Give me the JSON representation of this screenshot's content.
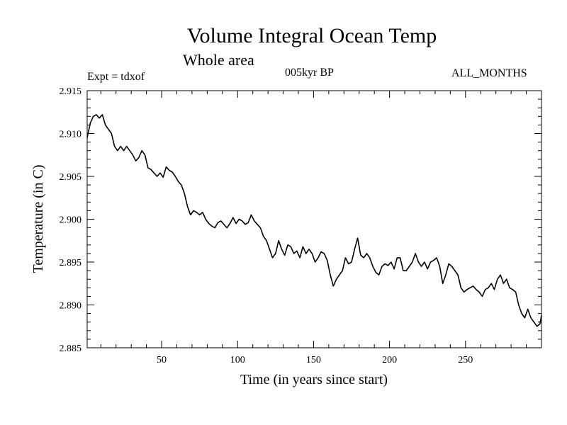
{
  "header": {
    "title": "Volume Integral Ocean Temp",
    "subtitle": "Whole area",
    "experiment": "Expt = tdxof",
    "period": "005kyr BP",
    "months": "ALL_MONTHS"
  },
  "chart_data": {
    "type": "line",
    "xlabel": "Time (in years since start)",
    "ylabel": "Temperature (in C)",
    "xlim": [
      1,
      300
    ],
    "ylim": [
      2.885,
      2.915
    ],
    "xticks": [
      50,
      100,
      150,
      200,
      250
    ],
    "yticks": [
      "2.885",
      "2.890",
      "2.895",
      "2.900",
      "2.905",
      "2.910",
      "2.915"
    ],
    "grid": false,
    "line_color": "#000000",
    "series": [
      {
        "x": [
          1,
          3,
          5,
          7,
          9,
          11,
          13,
          15,
          17,
          19,
          21,
          23,
          25,
          27,
          29,
          31,
          33,
          35,
          37,
          39,
          41,
          43,
          45,
          47,
          49,
          51,
          53,
          55,
          57,
          59,
          61,
          63,
          65,
          67,
          69,
          71,
          73,
          75,
          77,
          79,
          81,
          83,
          85,
          87,
          89,
          91,
          93,
          95,
          97,
          99,
          101,
          103,
          105,
          107,
          109,
          111,
          113,
          115,
          117,
          119,
          121,
          123,
          125,
          127,
          129,
          131,
          133,
          135,
          137,
          139,
          141,
          143,
          145,
          147,
          149,
          151,
          153,
          155,
          157,
          159,
          161,
          163,
          165,
          167,
          169,
          171,
          173,
          175,
          177,
          179,
          181,
          183,
          185,
          187,
          189,
          191,
          193,
          195,
          197,
          199,
          201,
          203,
          205,
          207,
          209,
          211,
          213,
          215,
          217,
          219,
          221,
          223,
          225,
          227,
          229,
          231,
          233,
          235,
          237,
          239,
          241,
          243,
          245,
          247,
          249,
          251,
          253,
          255,
          257,
          259,
          261,
          263,
          265,
          267,
          269,
          271,
          273,
          275,
          277,
          279,
          281,
          283,
          285,
          287,
          289,
          291,
          293,
          295,
          297,
          299,
          300
        ],
        "values": [
          2.9095,
          2.9112,
          2.912,
          2.9122,
          2.9118,
          2.9122,
          2.911,
          2.9105,
          2.91,
          2.9085,
          2.908,
          2.9085,
          2.908,
          2.9085,
          2.908,
          2.9075,
          2.9068,
          2.9072,
          2.908,
          2.9075,
          2.906,
          2.9058,
          2.9054,
          2.905,
          2.9054,
          2.9049,
          2.9061,
          2.9057,
          2.9055,
          2.905,
          2.9044,
          2.904,
          2.903,
          2.9015,
          2.9005,
          2.901,
          2.9008,
          2.9005,
          2.9008,
          2.9,
          2.8995,
          2.8992,
          2.899,
          2.8996,
          2.8998,
          2.8994,
          2.899,
          2.8995,
          2.9002,
          2.8995,
          2.9,
          2.8998,
          2.8994,
          2.8996,
          2.9005,
          2.8998,
          2.8994,
          2.899,
          2.898,
          2.8975,
          2.8965,
          2.8955,
          2.896,
          2.8975,
          2.8965,
          2.8958,
          2.897,
          2.8968,
          2.896,
          2.8963,
          2.8955,
          2.8968,
          2.896,
          2.8965,
          2.896,
          2.895,
          2.8955,
          2.8962,
          2.896,
          2.8952,
          2.8935,
          2.8922,
          2.893,
          2.8935,
          2.894,
          2.8955,
          2.8948,
          2.895,
          2.8965,
          2.8978,
          2.8958,
          2.8955,
          2.896,
          2.8955,
          2.8945,
          2.8938,
          2.8935,
          2.8945,
          2.8948,
          2.8946,
          2.895,
          2.8942,
          2.8955,
          2.8955,
          2.894,
          2.894,
          2.8945,
          2.895,
          2.896,
          2.895,
          2.8945,
          2.895,
          2.8942,
          2.895,
          2.8952,
          2.8955,
          2.8945,
          2.8925,
          2.8935,
          2.8948,
          2.8945,
          2.894,
          2.8935,
          2.892,
          2.8915,
          2.8918,
          2.892,
          2.8922,
          2.8918,
          2.8915,
          2.891,
          2.8918,
          2.892,
          2.8925,
          2.8918,
          2.893,
          2.8935,
          2.8925,
          2.893,
          2.892,
          2.8918,
          2.8915,
          2.89,
          2.889,
          2.8885,
          2.8895,
          2.8885,
          2.888,
          2.8875,
          2.8878,
          2.8888
        ]
      }
    ]
  }
}
